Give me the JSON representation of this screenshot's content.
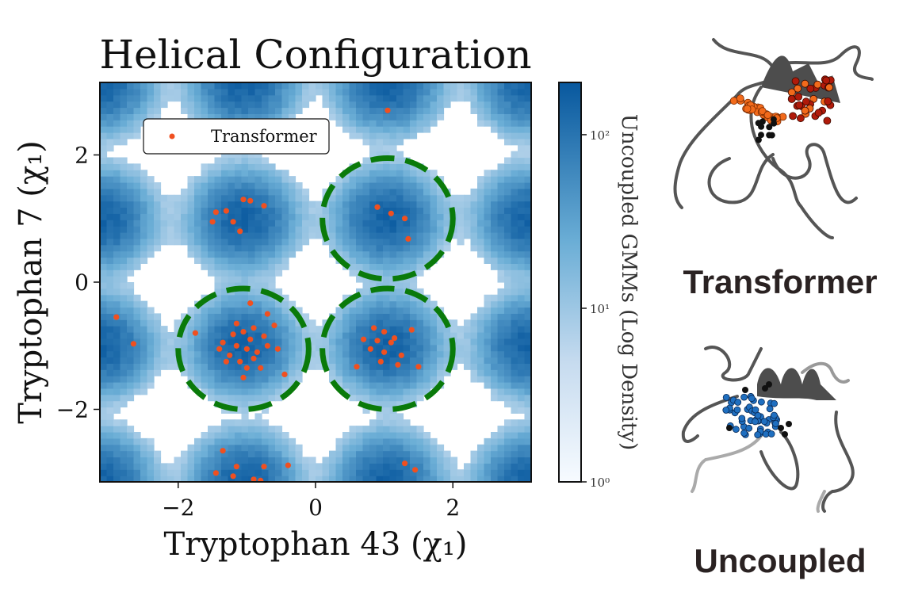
{
  "chart_data": {
    "type": "heatmap",
    "title": "Helical Configuration",
    "xlabel": "Tryptophan 43 (χ₁)",
    "ylabel": "Tryptophan 7 (χ₁)",
    "xlim": [
      -3.14,
      3.14
    ],
    "ylim": [
      -3.14,
      3.14
    ],
    "xticks": [
      -2,
      0,
      2
    ],
    "yticks": [
      -2,
      0,
      2
    ],
    "xtick_labels": [
      "−2",
      "0",
      "2"
    ],
    "ytick_labels": [
      "−2",
      "0",
      "2"
    ],
    "colorbar": {
      "label": "Uncoupled GMMs (Log Density)",
      "scale": "log",
      "range": [
        1,
        200
      ],
      "ticks": [
        1,
        10,
        100
      ],
      "tick_labels": [
        "10⁰",
        "10¹",
        "10²"
      ],
      "color_low": "#f7fbff",
      "color_high": "#08589e"
    },
    "density_clusters": [
      {
        "x": -3.14,
        "y": 1.0
      },
      {
        "x": -1.05,
        "y": 1.0
      },
      {
        "x": 1.05,
        "y": 1.0
      },
      {
        "x": 3.14,
        "y": 1.0
      },
      {
        "x": -3.14,
        "y": -1.0
      },
      {
        "x": -1.05,
        "y": -1.0
      },
      {
        "x": 1.05,
        "y": -1.0
      },
      {
        "x": 3.14,
        "y": -1.0
      },
      {
        "x": -3.14,
        "y": 3.14
      },
      {
        "x": -1.05,
        "y": 3.14
      },
      {
        "x": 1.05,
        "y": 3.14
      },
      {
        "x": 3.14,
        "y": 3.14
      },
      {
        "x": -3.14,
        "y": -3.14
      },
      {
        "x": -1.05,
        "y": -3.14
      },
      {
        "x": 1.05,
        "y": -3.14
      },
      {
        "x": 3.14,
        "y": -3.14
      }
    ],
    "highlight_circles": [
      {
        "x": 1.05,
        "y": 1.0,
        "r": 0.95,
        "color": "#0a7a0a"
      },
      {
        "x": -1.05,
        "y": -1.05,
        "r": 0.95,
        "color": "#0a7a0a"
      },
      {
        "x": 1.05,
        "y": -1.05,
        "r": 0.95,
        "color": "#0a7a0a"
      }
    ],
    "series": [
      {
        "name": "Transformer",
        "color": "#f05020",
        "points": [
          [
            1.05,
            2.7
          ],
          [
            -1.45,
            1.1
          ],
          [
            -1.2,
            0.95
          ],
          [
            -1.5,
            0.95
          ],
          [
            -1.05,
            1.3
          ],
          [
            -0.95,
            1.28
          ],
          [
            -0.75,
            1.2
          ],
          [
            -1.1,
            0.8
          ],
          [
            -1.3,
            1.12
          ],
          [
            0.9,
            1.18
          ],
          [
            1.1,
            1.08
          ],
          [
            1.3,
            1.0
          ],
          [
            1.35,
            0.68
          ],
          [
            -2.9,
            -0.55
          ],
          [
            -2.65,
            -0.97
          ],
          [
            -1.75,
            -0.8
          ],
          [
            -0.95,
            -0.33
          ],
          [
            -0.7,
            -0.5
          ],
          [
            -0.6,
            -0.68
          ],
          [
            -0.9,
            -0.72
          ],
          [
            -1.05,
            -0.78
          ],
          [
            -1.2,
            -0.82
          ],
          [
            -1.35,
            -0.95
          ],
          [
            -1.15,
            -1.0
          ],
          [
            -1.0,
            -1.05
          ],
          [
            -0.85,
            -1.1
          ],
          [
            -0.7,
            -1.0
          ],
          [
            -0.55,
            -1.05
          ],
          [
            -0.9,
            -1.2
          ],
          [
            -1.1,
            -1.25
          ],
          [
            -1.25,
            -1.15
          ],
          [
            -1.0,
            -1.35
          ],
          [
            -0.8,
            -1.35
          ],
          [
            -0.45,
            -1.45
          ],
          [
            -1.05,
            -1.5
          ],
          [
            -1.3,
            -1.25
          ],
          [
            -1.4,
            -1.05
          ],
          [
            -0.95,
            -0.9
          ],
          [
            -0.75,
            -0.85
          ],
          [
            -1.15,
            -0.65
          ],
          [
            0.85,
            -0.72
          ],
          [
            1.0,
            -0.78
          ],
          [
            0.7,
            -0.9
          ],
          [
            0.9,
            -0.92
          ],
          [
            1.1,
            -0.95
          ],
          [
            0.8,
            -1.05
          ],
          [
            1.0,
            -1.1
          ],
          [
            1.25,
            -1.15
          ],
          [
            1.4,
            -0.75
          ],
          [
            0.6,
            -1.33
          ],
          [
            1.2,
            -1.3
          ],
          [
            1.5,
            -1.33
          ],
          [
            0.95,
            -1.25
          ],
          [
            1.15,
            -0.88
          ],
          [
            -1.35,
            -2.65
          ],
          [
            -1.15,
            -2.9
          ],
          [
            -0.75,
            -2.9
          ],
          [
            -0.4,
            -2.88
          ],
          [
            -1.2,
            -3.05
          ],
          [
            -0.9,
            -3.1
          ],
          [
            -0.8,
            -3.12
          ],
          [
            -1.45,
            -3.0
          ],
          [
            1.3,
            -2.85
          ],
          [
            1.45,
            -2.95
          ]
        ]
      }
    ],
    "legend": {
      "entries": [
        "Transformer"
      ],
      "placement": "upper-left"
    }
  },
  "panels": {
    "top_label": "Transformer",
    "bottom_label": "Uncoupled"
  },
  "structure_colors": {
    "backbone": "#555555",
    "backbone_light": "#aaaaaa",
    "transformer_atoms": "#f26a1b",
    "transformer_atoms_dark": "#b01a0a",
    "uncoupled_atoms": "#1f6fc0",
    "side_chain": "#111111"
  }
}
